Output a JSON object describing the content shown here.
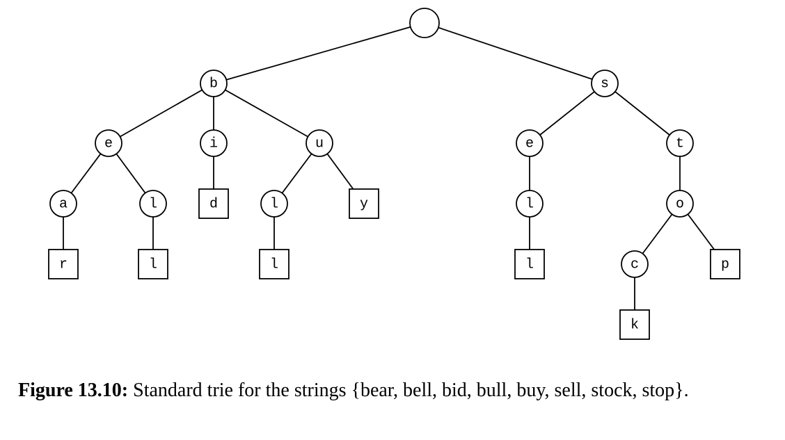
{
  "diagram": {
    "type": "standard-trie",
    "nodes": [
      {
        "id": "root",
        "label": "",
        "shape": "circle",
        "parent": null
      },
      {
        "id": "b",
        "label": "b",
        "shape": "circle",
        "parent": "root"
      },
      {
        "id": "s",
        "label": "s",
        "shape": "circle",
        "parent": "root"
      },
      {
        "id": "be",
        "label": "e",
        "shape": "circle",
        "parent": "b"
      },
      {
        "id": "bi",
        "label": "i",
        "shape": "circle",
        "parent": "b"
      },
      {
        "id": "bu",
        "label": "u",
        "shape": "circle",
        "parent": "b"
      },
      {
        "id": "bea",
        "label": "a",
        "shape": "circle",
        "parent": "be"
      },
      {
        "id": "bel",
        "label": "l",
        "shape": "circle",
        "parent": "be"
      },
      {
        "id": "bid",
        "label": "d",
        "shape": "square",
        "parent": "bi"
      },
      {
        "id": "bul",
        "label": "l",
        "shape": "circle",
        "parent": "bu"
      },
      {
        "id": "buy",
        "label": "y",
        "shape": "square",
        "parent": "bu"
      },
      {
        "id": "bear",
        "label": "r",
        "shape": "square",
        "parent": "bea"
      },
      {
        "id": "bell",
        "label": "l",
        "shape": "square",
        "parent": "bel"
      },
      {
        "id": "bull",
        "label": "l",
        "shape": "square",
        "parent": "bul"
      },
      {
        "id": "se",
        "label": "e",
        "shape": "circle",
        "parent": "s"
      },
      {
        "id": "st",
        "label": "t",
        "shape": "circle",
        "parent": "s"
      },
      {
        "id": "sel",
        "label": "l",
        "shape": "circle",
        "parent": "se"
      },
      {
        "id": "sell",
        "label": "l",
        "shape": "square",
        "parent": "sel"
      },
      {
        "id": "sto",
        "label": "o",
        "shape": "circle",
        "parent": "st"
      },
      {
        "id": "stoc",
        "label": "c",
        "shape": "circle",
        "parent": "sto"
      },
      {
        "id": "stop",
        "label": "p",
        "shape": "square",
        "parent": "sto"
      },
      {
        "id": "stock",
        "label": "k",
        "shape": "square",
        "parent": "stoc"
      }
    ]
  },
  "caption": {
    "label": "Figure 13.10:",
    "text": "Standard trie for the strings {bear, bell, bid, bull, buy, sell, stock, stop}."
  }
}
